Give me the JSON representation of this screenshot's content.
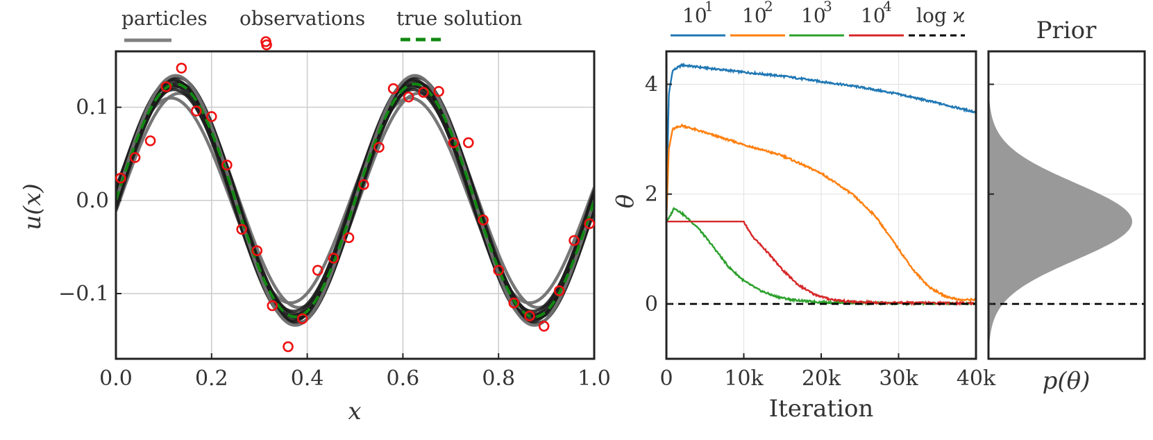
{
  "chart_data": [
    {
      "type": "line",
      "panel": "solution",
      "xlabel": "x",
      "ylabel": "u(x)",
      "xlim": [
        0.0,
        1.0
      ],
      "ylim": [
        -0.17,
        0.16
      ],
      "grid": true,
      "xticks": [
        "0.0",
        "0.2",
        "0.4",
        "0.6",
        "0.8",
        "1.0"
      ],
      "xtick_values": [
        0.0,
        0.2,
        0.4,
        0.6,
        0.8,
        1.0
      ],
      "yticks": [
        "−0.1",
        "0.0",
        "0.1"
      ],
      "ytick_values": [
        -0.1,
        0.0,
        0.1
      ],
      "legend": {
        "particles": "particles",
        "observations": "observations",
        "true_solution": "true solution"
      },
      "true_solution": {
        "formula": "0.125 * sin(4*pi*x)",
        "amplitude": 0.125,
        "frequency": 2
      },
      "particle_amplitudes": [
        0.11,
        0.115,
        0.119,
        0.122,
        0.124,
        0.126,
        0.128,
        0.13,
        0.132,
        0.134
      ],
      "particle_phases": [
        0.01,
        -0.008,
        0.004,
        -0.003,
        0.007,
        -0.006,
        0.002,
        0.005,
        -0.004,
        0.0
      ],
      "observations": {
        "x": [
          0.01,
          0.04,
          0.072,
          0.105,
          0.137,
          0.168,
          0.2,
          0.232,
          0.263,
          0.295,
          0.315,
          0.327,
          0.36,
          0.39,
          0.422,
          0.455,
          0.487,
          0.518,
          0.55,
          0.58,
          0.612,
          0.643,
          0.675,
          0.706,
          0.737,
          0.768,
          0.8,
          0.832,
          0.865,
          0.895,
          0.927,
          0.958,
          0.99
        ],
        "y": [
          0.024,
          0.046,
          0.064,
          0.122,
          0.142,
          0.096,
          0.09,
          0.038,
          -0.031,
          -0.054,
          0.167,
          -0.113,
          -0.157,
          -0.127,
          -0.075,
          -0.062,
          -0.04,
          0.017,
          0.057,
          0.12,
          0.111,
          0.116,
          0.117,
          0.062,
          0.062,
          -0.021,
          -0.075,
          -0.11,
          -0.124,
          -0.135,
          -0.097,
          -0.043,
          -0.025
        ]
      }
    },
    {
      "type": "line",
      "panel": "theta_traces",
      "xlabel": "Iteration",
      "ylabel": "θ",
      "xlim": [
        0,
        40000
      ],
      "ylim": [
        -1.0,
        4.6
      ],
      "grid": true,
      "xticks": [
        "0",
        "10k",
        "20k",
        "30k",
        "40k"
      ],
      "xtick_values": [
        0,
        10000,
        20000,
        30000,
        40000
      ],
      "yticks": [
        "0",
        "2",
        "4"
      ],
      "ytick_values": [
        0,
        2,
        4
      ],
      "reference": {
        "name": "log ϰ",
        "value": 0.0,
        "color": "#000000"
      },
      "series": [
        {
          "name_base": "10",
          "name_exp": "1",
          "color": "#1f77b4",
          "x": [
            0,
            300,
            800,
            2000,
            5000,
            10000,
            15000,
            20000,
            25000,
            30000,
            35000,
            40000
          ],
          "y": [
            1.5,
            3.8,
            4.25,
            4.35,
            4.3,
            4.22,
            4.15,
            4.05,
            3.95,
            3.82,
            3.66,
            3.49
          ]
        },
        {
          "name_base": "10",
          "name_exp": "2",
          "color": "#ff7f0e",
          "x": [
            0,
            300,
            800,
            2000,
            5000,
            10000,
            15000,
            20000,
            24000,
            27000,
            30000,
            32000,
            34000,
            36000,
            38000,
            40000
          ],
          "y": [
            1.5,
            2.8,
            3.18,
            3.25,
            3.12,
            2.9,
            2.7,
            2.38,
            2.0,
            1.6,
            1.0,
            0.6,
            0.3,
            0.14,
            0.07,
            0.08
          ]
        },
        {
          "name_base": "10",
          "name_exp": "3",
          "color": "#2ca02c",
          "x": [
            0,
            300,
            1000,
            2000,
            4000,
            6000,
            8000,
            10000,
            12000,
            14000,
            16000,
            18000,
            20000,
            25000,
            30000,
            40000
          ],
          "y": [
            1.5,
            1.55,
            1.75,
            1.65,
            1.4,
            1.05,
            0.68,
            0.42,
            0.25,
            0.14,
            0.08,
            0.05,
            0.03,
            0.02,
            0.01,
            0.01
          ]
        },
        {
          "name_base": "10",
          "name_exp": "4",
          "color": "#d62728",
          "x": [
            0,
            10000,
            11000,
            13000,
            15000,
            17000,
            19000,
            21000,
            23000,
            25000,
            30000,
            40000
          ],
          "y": [
            1.5,
            1.5,
            1.25,
            0.95,
            0.62,
            0.35,
            0.18,
            0.09,
            0.05,
            0.03,
            0.02,
            0.01
          ]
        }
      ]
    },
    {
      "type": "area",
      "panel": "prior",
      "title": "Prior",
      "xlabel": "p(θ)",
      "ylim": [
        -1.0,
        4.6
      ],
      "distribution": {
        "kind": "gaussian",
        "mean": 1.5,
        "std": 0.7
      },
      "fill_color": "#999999",
      "reference": {
        "value": 0.0,
        "color": "#000000"
      }
    }
  ]
}
